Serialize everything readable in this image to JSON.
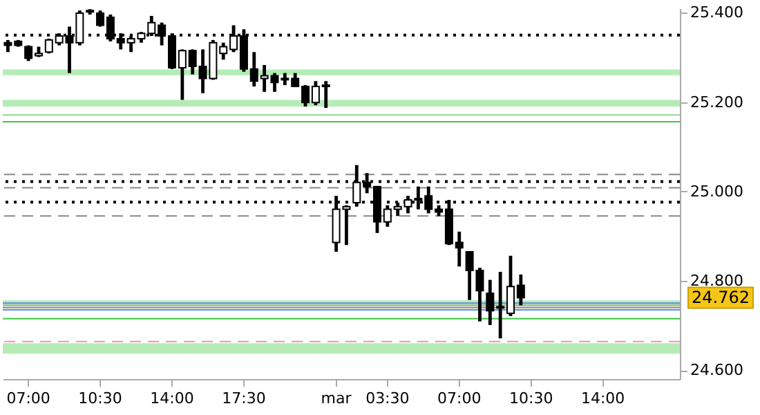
{
  "chart_data": {
    "type": "candlestick",
    "categories": [
      null,
      null,
      "07:00",
      null,
      null,
      null,
      null,
      null,
      null,
      "10:30",
      null,
      null,
      null,
      null,
      null,
      null,
      "14:00",
      null,
      null,
      null,
      null,
      null,
      null,
      "17:30",
      null,
      null,
      null,
      null,
      null,
      null,
      null,
      null,
      "mar",
      null,
      null,
      null,
      null,
      "03:30",
      null,
      null,
      null,
      null,
      null,
      null,
      "07:00",
      null,
      null,
      null,
      null,
      null,
      null,
      "10:30",
      null,
      null,
      null,
      null,
      null,
      null,
      "14:00",
      null,
      null,
      null,
      null,
      null,
      null,
      null
    ],
    "ohlc": [
      [
        25.333,
        25.339,
        25.312,
        25.327
      ],
      [
        25.336,
        25.339,
        25.324,
        25.327
      ],
      [
        25.324,
        25.327,
        25.292,
        25.298
      ],
      [
        25.304,
        25.324,
        25.301,
        25.309
      ],
      [
        25.312,
        25.342,
        25.309,
        25.339
      ],
      [
        25.333,
        25.354,
        25.327,
        25.348
      ],
      [
        25.348,
        25.369,
        25.265,
        25.333
      ],
      [
        25.333,
        25.405,
        25.327,
        25.399
      ],
      [
        25.402,
        25.408,
        25.396,
        25.405
      ],
      [
        25.399,
        25.405,
        25.369,
        25.372
      ],
      [
        25.39,
        25.396,
        25.336,
        25.342
      ],
      [
        25.342,
        25.354,
        25.318,
        25.333
      ],
      [
        25.333,
        25.348,
        25.312,
        25.342
      ],
      [
        25.342,
        25.357,
        25.333,
        25.354
      ],
      [
        25.354,
        25.393,
        25.348,
        25.378
      ],
      [
        25.372,
        25.378,
        25.327,
        25.348
      ],
      [
        25.348,
        25.354,
        25.274,
        25.277
      ],
      [
        25.277,
        25.318,
        25.205,
        25.315
      ],
      [
        25.315,
        25.318,
        25.262,
        25.28
      ],
      [
        25.28,
        25.318,
        25.22,
        25.253
      ],
      [
        25.253,
        25.339,
        25.25,
        25.333
      ],
      [
        25.309,
        25.333,
        25.295,
        25.324
      ],
      [
        25.318,
        25.372,
        25.312,
        25.348
      ],
      [
        25.348,
        25.363,
        25.268,
        25.274
      ],
      [
        25.274,
        25.312,
        25.235,
        25.247
      ],
      [
        25.253,
        25.283,
        25.223,
        25.259
      ],
      [
        25.259,
        25.265,
        25.223,
        25.244
      ],
      [
        25.25,
        25.265,
        25.238,
        25.253
      ],
      [
        25.253,
        25.265,
        25.235,
        25.235
      ],
      [
        25.235,
        25.238,
        25.19,
        25.199
      ],
      [
        25.199,
        25.247,
        25.193,
        25.235
      ],
      [
        25.235,
        25.247,
        25.187,
        25.238
      ],
      [
        24.886,
        24.99,
        24.865,
        24.96
      ],
      [
        24.96,
        24.969,
        24.88,
        24.966
      ],
      [
        24.975,
        25.059,
        24.966,
        25.02
      ],
      [
        25.02,
        25.041,
        24.996,
        25.011
      ],
      [
        25.011,
        25.011,
        24.907,
        24.932
      ],
      [
        24.932,
        24.969,
        24.921,
        24.96
      ],
      [
        24.96,
        24.975,
        24.945,
        24.966
      ],
      [
        24.966,
        24.99,
        24.951,
        24.981
      ],
      [
        24.981,
        25.011,
        24.96,
        24.984
      ],
      [
        24.99,
        25.011,
        24.951,
        24.96
      ],
      [
        24.96,
        24.969,
        24.945,
        24.954
      ],
      [
        24.96,
        24.981,
        24.88,
        24.883
      ],
      [
        24.886,
        24.91,
        24.832,
        24.874
      ],
      [
        24.865,
        24.865,
        24.757,
        24.823
      ],
      [
        24.823,
        24.829,
        24.709,
        24.778
      ],
      [
        24.772,
        24.802,
        24.701,
        24.733
      ],
      [
        24.742,
        24.82,
        24.671,
        24.739
      ],
      [
        24.727,
        24.856,
        24.721,
        24.787
      ],
      [
        24.79,
        24.814,
        24.745,
        24.762
      ],
      null,
      null,
      null,
      null,
      null,
      null,
      null,
      null,
      null,
      null,
      null,
      null,
      null,
      null,
      null
    ],
    "ylim": [
      24.58,
      25.41
    ],
    "yticks": [
      {
        "value": 24.6,
        "label": "24.600"
      },
      {
        "value": 24.8,
        "label": "24.800"
      },
      {
        "value": 25.0,
        "label": "25.000"
      },
      {
        "value": 25.2,
        "label": "25.200"
      },
      {
        "value": 25.4,
        "label": "25.400"
      }
    ],
    "bands": [
      {
        "axis": "y",
        "from": 25.26,
        "to": 25.273,
        "color": "#b5ecb5"
      },
      {
        "axis": "y",
        "from": 25.19,
        "to": 25.205,
        "color": "#b5ecb5"
      },
      {
        "axis": "y",
        "from": 24.743,
        "to": 24.756,
        "color": "#b5ecb5"
      },
      {
        "axis": "y",
        "from": 24.637,
        "to": 24.66,
        "color": "#b5ecb5"
      }
    ],
    "ref_lines": [
      {
        "axis": "y",
        "value": 25.35,
        "color": "#000000",
        "line_style": "dotted"
      },
      {
        "axis": "y",
        "value": 25.171,
        "color": "#8fd88f",
        "line_style": "solid"
      },
      {
        "axis": "y",
        "value": 25.156,
        "color": "#3cc83c",
        "line_style": "solid"
      },
      {
        "axis": "y",
        "value": 25.038,
        "color": "#888888",
        "line_style": "dashed"
      },
      {
        "axis": "y",
        "value": 25.022,
        "color": "#000000",
        "line_style": "dotted"
      },
      {
        "axis": "y",
        "value": 25.008,
        "color": "#888888",
        "line_style": "dashed"
      },
      {
        "axis": "y",
        "value": 24.976,
        "color": "#000000",
        "line_style": "dotted"
      },
      {
        "axis": "y",
        "value": 24.945,
        "color": "#888888",
        "line_style": "dashed"
      },
      {
        "axis": "y",
        "value": 24.75,
        "color": "#5b8fe8",
        "line_style": "solid"
      },
      {
        "axis": "y",
        "value": 24.745,
        "color": "#aaaaaa",
        "line_style": "solid"
      },
      {
        "axis": "y",
        "value": 24.74,
        "color": "#888888",
        "line_style": "solid"
      },
      {
        "axis": "y",
        "value": 24.735,
        "color": "#5b8fe8",
        "line_style": "solid"
      },
      {
        "axis": "y",
        "value": 24.715,
        "color": "#3cc83c",
        "line_style": "solid"
      },
      {
        "axis": "y",
        "value": 24.664,
        "color": "#f08ec0",
        "line_style": "dashed"
      }
    ],
    "annotations": [
      "24.762"
    ]
  }
}
